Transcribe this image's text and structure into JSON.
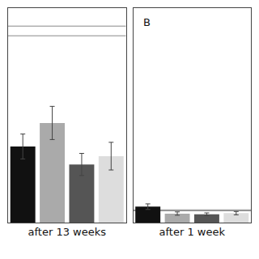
{
  "chart_data": [
    {
      "type": "bar",
      "xlabel": "after 13 weeks",
      "categories": [
        null,
        null,
        null,
        null
      ],
      "values": [
        0.55,
        0.72,
        0.42,
        0.48
      ],
      "errors": [
        0.09,
        0.12,
        0.08,
        0.1
      ],
      "colors": [
        "#111111",
        "#aaaaaa",
        "#555555",
        "#dddddd"
      ],
      "reference_lines": {
        "values": [
          1.35,
          1.42
        ],
        "color": "#888888"
      },
      "ylim": [
        0,
        1.55
      ],
      "tick_labels": false,
      "grid": false
    },
    {
      "type": "bar",
      "xlabel": "after 1 week",
      "categories": [
        null,
        null,
        null,
        null
      ],
      "values": [
        0.115,
        0.065,
        0.06,
        0.068
      ],
      "errors": [
        0.02,
        0.012,
        0.01,
        0.012
      ],
      "colors": [
        "#111111",
        "#aaaaaa",
        "#555555",
        "#dddddd"
      ],
      "reference_lines": {
        "values": [
          0.085,
          0.092
        ],
        "color": "#888888"
      },
      "ylim": [
        0,
        1.55
      ],
      "tick_labels": false,
      "grid": false,
      "annotation": "B"
    }
  ]
}
